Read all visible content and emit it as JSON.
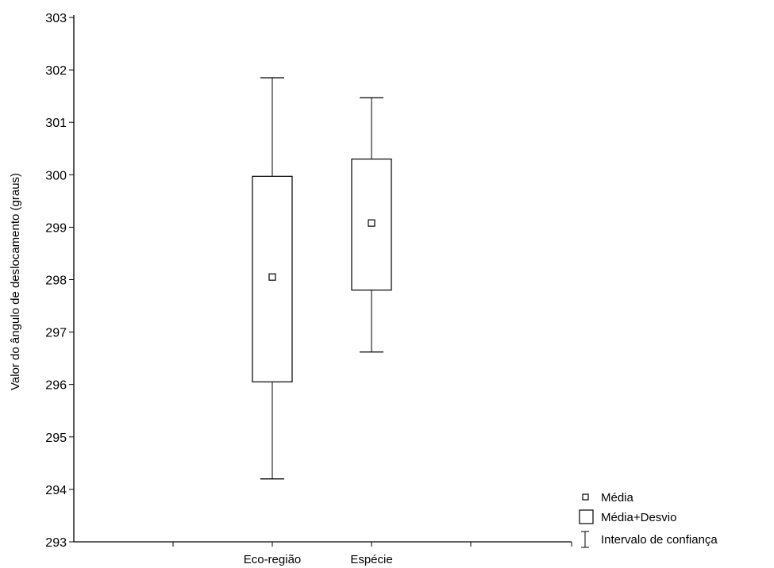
{
  "chart_data": {
    "type": "box",
    "title": "",
    "xlabel": "",
    "ylabel": "Valor do ângulo de deslocamento (graus)",
    "ylim": [
      293,
      303
    ],
    "yticks": [
      293,
      294,
      295,
      296,
      297,
      298,
      299,
      300,
      301,
      302,
      303
    ],
    "grid": false,
    "legend_position": "bottom-right",
    "categories": [
      "Eco-região",
      "Espécie"
    ],
    "boxes": [
      {
        "category": "Eco-região",
        "mean": 298.05,
        "box_low": 296.05,
        "box_high": 299.97,
        "whisker_low": 294.2,
        "whisker_high": 301.85
      },
      {
        "category": "Espécie",
        "mean": 299.08,
        "box_low": 297.8,
        "box_high": 300.3,
        "whisker_low": 296.62,
        "whisker_high": 301.47
      }
    ],
    "legend": [
      {
        "label": "Média",
        "symbol": "small-square"
      },
      {
        "label": "Média+Desvio",
        "symbol": "box"
      },
      {
        "label": "Intervalo de confiança",
        "symbol": "whisker"
      }
    ]
  }
}
